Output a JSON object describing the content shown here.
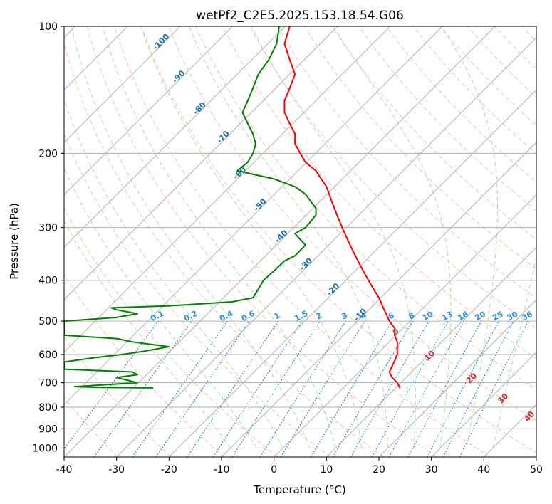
{
  "chart_data": {
    "type": "line",
    "title": "wetPf2_C2E5.2025.153.18.54.G06",
    "xlabel": "Temperature (°C)",
    "ylabel": "Pressure (hPa)",
    "xlim": [
      -40,
      50
    ],
    "ylim": [
      1050,
      100
    ],
    "y_scale": "log",
    "grid": true,
    "x_ticks": [
      "-40",
      "-30",
      "-20",
      "-10",
      "0",
      "10",
      "20",
      "30",
      "40",
      "50"
    ],
    "y_ticks": [
      "100",
      "200",
      "300",
      "400",
      "500",
      "600",
      "700",
      "800",
      "900",
      "1000"
    ],
    "colors": {
      "temperature": "#ff0000",
      "dewpoint": "#008000",
      "isotherm": "#b0b0b0",
      "dry_adiabat": "#ffb69c",
      "moist_adiabat": "#9fd49f",
      "mixing_ratio": "#1f77e4",
      "mixing_label": "#2b8ee8",
      "isotherm_label": "#1a6fb0",
      "adiabat_label": "#d62728"
    },
    "isotherm_labels": [
      "-100",
      "-90",
      "-80",
      "-70",
      "-60",
      "-50",
      "-40",
      "-30",
      "-20",
      "-10",
      "0"
    ],
    "mixing_ratio_labels": [
      "0.1",
      "0.2",
      "0.4",
      "0.6",
      "1",
      "1.5",
      "2",
      "3",
      "4",
      "6",
      "8",
      "10",
      "13",
      "16",
      "20",
      "25",
      "30",
      "36"
    ],
    "adiabat_labels": [
      "10",
      "20",
      "30",
      "40"
    ],
    "series": [
      {
        "name": "temperature",
        "points": [
          [
            3,
            100
          ],
          [
            2,
            110
          ],
          [
            3,
            120
          ],
          [
            4,
            130
          ],
          [
            3,
            140
          ],
          [
            2,
            150
          ],
          [
            2,
            160
          ],
          [
            3,
            170
          ],
          [
            4,
            180
          ],
          [
            4,
            190
          ],
          [
            5,
            200
          ],
          [
            6,
            210
          ],
          [
            8,
            220
          ],
          [
            9,
            230
          ],
          [
            10,
            240
          ],
          [
            11,
            260
          ],
          [
            12,
            280
          ],
          [
            13,
            300
          ],
          [
            14,
            320
          ],
          [
            15,
            340
          ],
          [
            16,
            360
          ],
          [
            17,
            380
          ],
          [
            18,
            400
          ],
          [
            19,
            420
          ],
          [
            20,
            440
          ],
          [
            21,
            470
          ],
          [
            22,
            500
          ],
          [
            23,
            520
          ],
          [
            23,
            540
          ],
          [
            23.5,
            560
          ],
          [
            23.5,
            580
          ],
          [
            23.5,
            600
          ],
          [
            23,
            620
          ],
          [
            22.5,
            640
          ],
          [
            22,
            660
          ],
          [
            22.5,
            680
          ],
          [
            23.5,
            700
          ],
          [
            24,
            720
          ]
        ]
      },
      {
        "name": "dewpoint",
        "points": [
          [
            1,
            100
          ],
          [
            0.5,
            110
          ],
          [
            -1,
            120
          ],
          [
            -3,
            130
          ],
          [
            -4,
            140
          ],
          [
            -5,
            150
          ],
          [
            -6,
            160
          ],
          [
            -5,
            170
          ],
          [
            -4,
            180
          ],
          [
            -3.5,
            190
          ],
          [
            -4,
            200
          ],
          [
            -5,
            210
          ],
          [
            -7,
            220
          ],
          [
            0,
            230
          ],
          [
            4,
            240
          ],
          [
            6,
            250
          ],
          [
            7,
            260
          ],
          [
            8,
            270
          ],
          [
            8,
            280
          ],
          [
            7,
            290
          ],
          [
            6,
            300
          ],
          [
            4,
            310
          ],
          [
            5,
            320
          ],
          [
            6,
            330
          ],
          [
            5,
            340
          ],
          [
            4,
            350
          ],
          [
            2,
            360
          ],
          [
            0,
            380
          ],
          [
            -2,
            400
          ],
          [
            -3,
            420
          ],
          [
            -4,
            440
          ],
          [
            -8,
            450
          ],
          [
            -20,
            460
          ],
          [
            -31,
            465
          ],
          [
            -30,
            470
          ],
          [
            -26,
            480
          ],
          [
            -30,
            490
          ],
          [
            -40,
            500
          ],
          [
            -40,
            540
          ],
          [
            -30,
            550
          ],
          [
            -27,
            560
          ],
          [
            -20,
            575
          ],
          [
            -25,
            590
          ],
          [
            -29,
            600
          ],
          [
            -34,
            610
          ],
          [
            -40,
            625
          ],
          [
            -40,
            650
          ],
          [
            -27,
            660
          ],
          [
            -26,
            670
          ],
          [
            -30,
            680
          ],
          [
            -26,
            700
          ],
          [
            -38,
            715
          ],
          [
            -33,
            718
          ],
          [
            -23,
            720
          ]
        ]
      }
    ]
  }
}
